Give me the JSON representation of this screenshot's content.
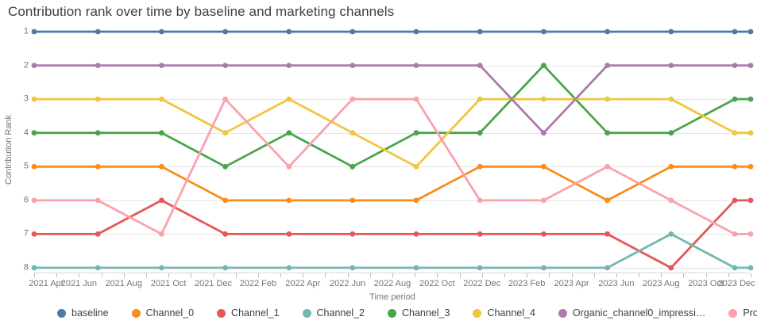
{
  "title": "Contribution rank over time by baseline and marketing channels",
  "chart_data": {
    "type": "line",
    "title": "Contribution rank over time by baseline and marketing channels",
    "xlabel": "Time period",
    "ylabel": "Contribution Rank",
    "legend_position": "bottom",
    "grid": true,
    "y_axis": {
      "ticks": [
        1,
        2,
        3,
        4,
        5,
        6,
        7,
        8
      ],
      "inverted": true,
      "min": 1,
      "max": 8
    },
    "x_axis": {
      "tick_labels": [
        "2021 Apr",
        "2021 Jun",
        "2021 Aug",
        "2021 Oct",
        "2021 Dec",
        "2022 Feb",
        "2022 Apr",
        "2022 Jun",
        "2022 Aug",
        "2022 Oct",
        "2022 Dec",
        "2023 Feb",
        "2023 Apr",
        "2023 Jun",
        "2023 Aug",
        "2023 Oct",
        "2023 Dec"
      ],
      "minor_tick_count": 33
    },
    "x_positions_pct": [
      0,
      8.89,
      17.78,
      26.67,
      35.56,
      44.44,
      53.33,
      62.22,
      71.11,
      80.0,
      88.89,
      97.78,
      100
    ],
    "series": [
      {
        "name": "baseline",
        "color": "#4a79ae",
        "values": [
          1,
          1,
          1,
          1,
          1,
          1,
          1,
          1,
          1,
          1,
          1,
          1,
          1
        ]
      },
      {
        "name": "Channel_0",
        "color": "#fa8c1c",
        "values": [
          5,
          5,
          5,
          6,
          6,
          6,
          6,
          5,
          5,
          6,
          5,
          5,
          5
        ]
      },
      {
        "name": "Channel_1",
        "color": "#e4585a",
        "values": [
          7,
          7,
          6,
          7,
          7,
          7,
          7,
          7,
          7,
          7,
          8,
          6,
          6
        ]
      },
      {
        "name": "Channel_2",
        "color": "#72b8b1",
        "values": [
          8,
          8,
          8,
          8,
          8,
          8,
          8,
          8,
          8,
          8,
          7,
          8,
          8
        ]
      },
      {
        "name": "Channel_3",
        "color": "#4aa54a",
        "values": [
          4,
          4,
          4,
          5,
          4,
          5,
          4,
          4,
          2,
          4,
          4,
          3,
          3
        ]
      },
      {
        "name": "Channel_4",
        "color": "#f2c53e",
        "values": [
          3,
          3,
          3,
          4,
          3,
          4,
          5,
          3,
          3,
          3,
          3,
          4,
          4
        ]
      },
      {
        "name": "Organic_channel0_impressi…",
        "color": "#aa7bab",
        "values": [
          2,
          2,
          2,
          2,
          2,
          2,
          2,
          2,
          4,
          2,
          2,
          2,
          2
        ]
      },
      {
        "name": "Promo",
        "color": "#f9a2ad",
        "values": [
          6,
          6,
          7,
          3,
          5,
          3,
          3,
          6,
          6,
          5,
          6,
          7,
          7
        ]
      }
    ]
  }
}
